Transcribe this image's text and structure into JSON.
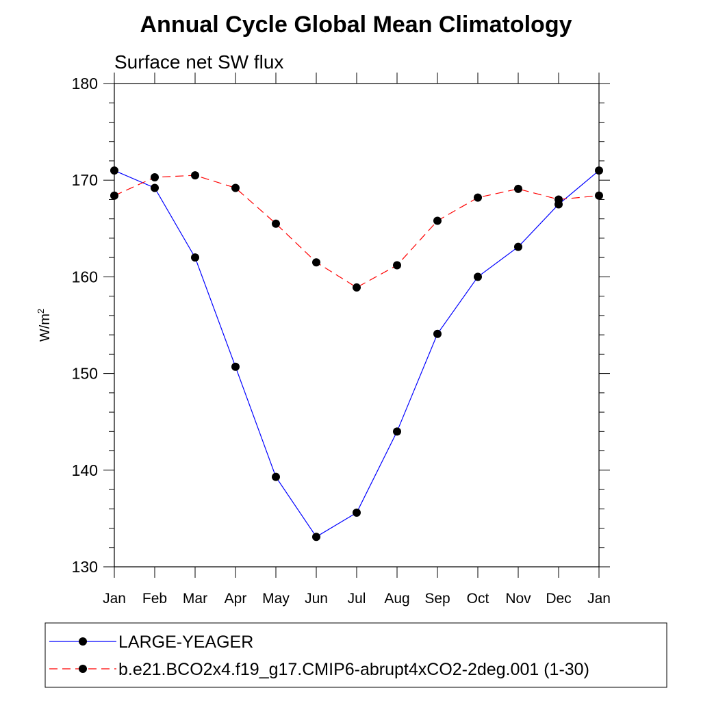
{
  "chart_data": {
    "type": "line",
    "title": "Annual Cycle Global Mean Climatology",
    "subtitle": "Surface net SW flux",
    "ylabel": "W/m",
    "ylabel_superscript": "2",
    "ylim": [
      130,
      180
    ],
    "yticks": [
      "130",
      "140",
      "150",
      "160",
      "170",
      "180"
    ],
    "categories": [
      "Jan",
      "Feb",
      "Mar",
      "Apr",
      "May",
      "Jun",
      "Jul",
      "Aug",
      "Sep",
      "Oct",
      "Nov",
      "Dec",
      "Jan"
    ],
    "grid": false,
    "legend_position": "bottom",
    "series": [
      {
        "name": "LARGE-YEAGER",
        "color": "#0000ff",
        "line_style": "solid",
        "marker": "filled-circle",
        "values": [
          171.0,
          169.2,
          162.0,
          150.7,
          139.3,
          133.1,
          135.6,
          144.0,
          154.1,
          160.0,
          163.1,
          167.5,
          171.0
        ]
      },
      {
        "name": "b.e21.BCO2x4.f19_g17.CMIP6-abrupt4xCO2-2deg.001 (1-30)",
        "color": "#ff0000",
        "line_style": "dashed",
        "marker": "filled-circle",
        "values": [
          168.4,
          170.3,
          170.5,
          169.2,
          165.5,
          161.5,
          158.9,
          161.2,
          165.8,
          168.2,
          169.1,
          168.0,
          168.4
        ]
      }
    ]
  }
}
